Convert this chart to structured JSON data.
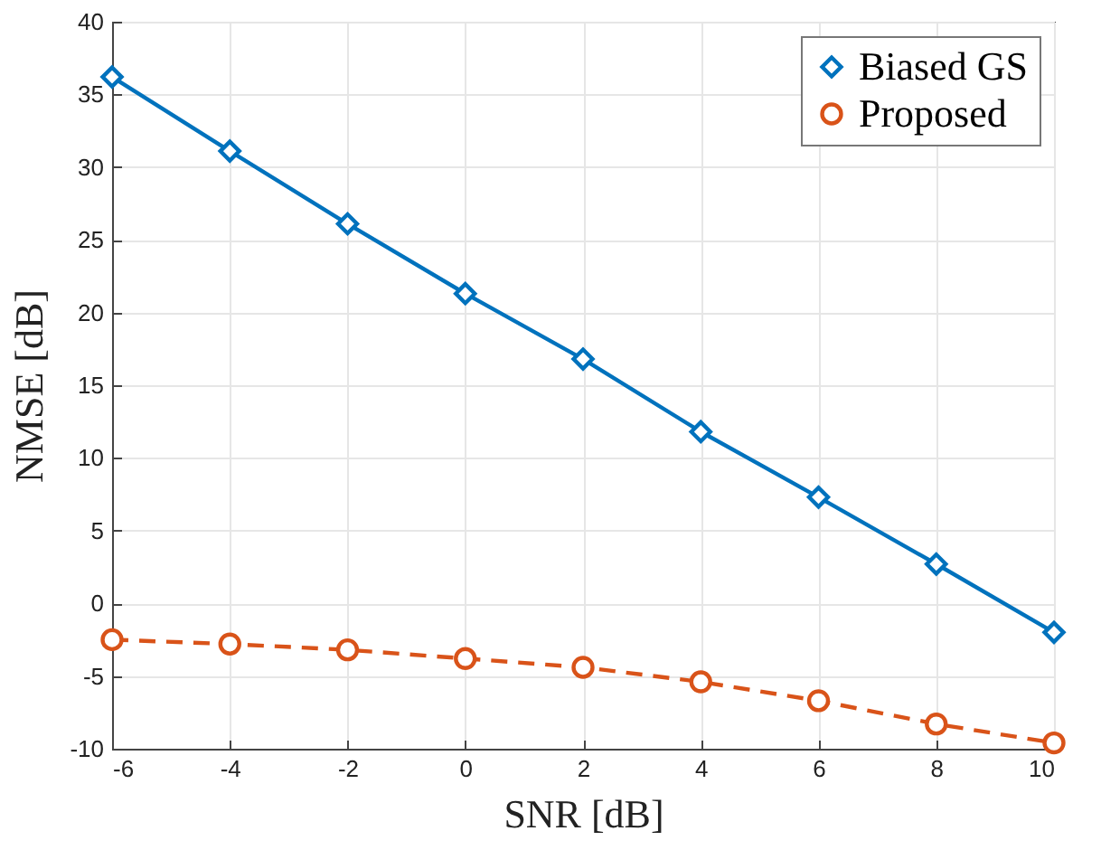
{
  "chart_data": {
    "type": "line",
    "xlabel": "SNR [dB]",
    "ylabel": "NMSE [dB]",
    "x": [
      -6,
      -4,
      -2,
      0,
      2,
      4,
      6,
      8,
      10
    ],
    "series": [
      {
        "name": "Biased GS",
        "color": "#0072bd",
        "marker": "diamond",
        "line_style": "solid",
        "values": [
          36.2,
          31.1,
          26.1,
          21.3,
          16.8,
          11.8,
          7.3,
          2.7,
          -2.0
        ]
      },
      {
        "name": "Proposed",
        "color": "#d95319",
        "marker": "circle",
        "line_style": "dashed",
        "values": [
          -2.5,
          -2.8,
          -3.2,
          -3.8,
          -4.4,
          -5.4,
          -6.7,
          -8.3,
          -9.6
        ]
      }
    ],
    "xlim": [
      -6,
      10
    ],
    "xticks": [
      -6,
      -4,
      -2,
      0,
      2,
      4,
      6,
      8,
      10
    ],
    "ylim": [
      -10,
      40
    ],
    "yticks": [
      -10,
      -5,
      0,
      5,
      10,
      15,
      20,
      25,
      30,
      35,
      40
    ],
    "grid": true,
    "legend": "top right"
  }
}
